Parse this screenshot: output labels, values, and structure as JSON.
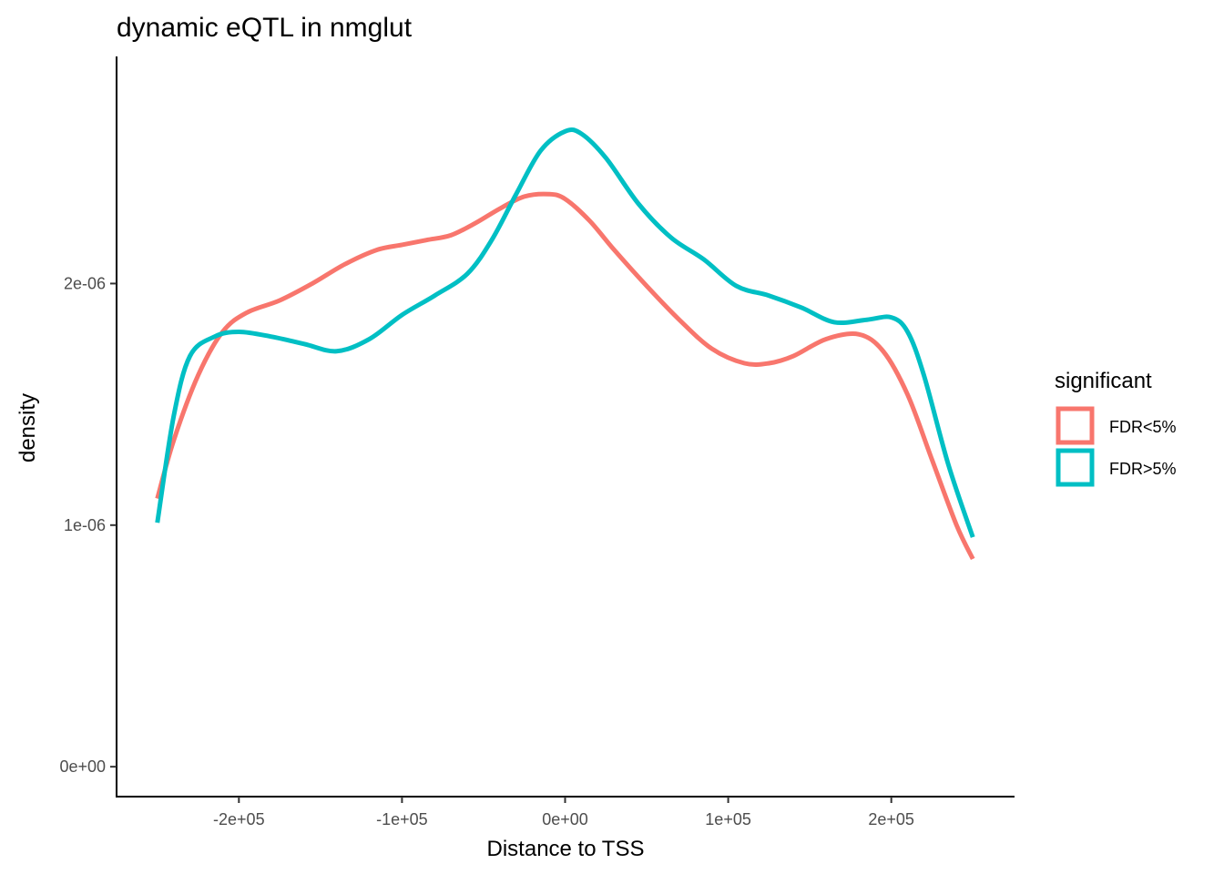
{
  "chart_data": {
    "type": "line",
    "title": "dynamic eQTL in nmglut",
    "xlabel": "Distance to TSS",
    "ylabel": "density",
    "xlim": [
      -275000,
      275000
    ],
    "ylim": [
      -1.2e-07,
      2.94e-06
    ],
    "x_ticks": [
      -200000,
      -100000,
      0,
      100000,
      200000
    ],
    "x_tick_labels": [
      "-2e+05",
      "-1e+05",
      "0e+00",
      "1e+05",
      "2e+05"
    ],
    "y_ticks": [
      0,
      1e-06,
      2e-06
    ],
    "y_tick_labels": [
      "0e+00",
      "1e-06",
      "2e-06"
    ],
    "grid": false,
    "legend": {
      "title": "significant",
      "position": "right"
    },
    "series": [
      {
        "name": "FDR<5%",
        "color": "#F8766D",
        "x": [
          -250000,
          -240000,
          -225000,
          -210000,
          -195000,
          -175000,
          -155000,
          -135000,
          -115000,
          -100000,
          -85000,
          -70000,
          -55000,
          -40000,
          -25000,
          -10000,
          0,
          15000,
          30000,
          50000,
          70000,
          90000,
          110000,
          125000,
          140000,
          160000,
          180000,
          195000,
          210000,
          225000,
          240000,
          250000
        ],
        "y": [
          1.11e-06,
          1.35e-06,
          1.62e-06,
          1.8e-06,
          1.88e-06,
          1.93e-06,
          2e-06,
          2.08e-06,
          2.14e-06,
          2.16e-06,
          2.18e-06,
          2.2e-06,
          2.25e-06,
          2.31e-06,
          2.36e-06,
          2.37e-06,
          2.35e-06,
          2.26e-06,
          2.14e-06,
          1.99e-06,
          1.85e-06,
          1.73e-06,
          1.67e-06,
          1.67e-06,
          1.7e-06,
          1.77e-06,
          1.79e-06,
          1.72e-06,
          1.54e-06,
          1.27e-06,
          1e-06,
          8.6e-07
        ]
      },
      {
        "name": "FDR>5%",
        "color": "#00BFC4",
        "x": [
          -250000,
          -240000,
          -230000,
          -215000,
          -200000,
          -180000,
          -160000,
          -140000,
          -120000,
          -100000,
          -80000,
          -60000,
          -45000,
          -30000,
          -15000,
          0,
          10000,
          25000,
          45000,
          65000,
          85000,
          105000,
          125000,
          145000,
          165000,
          185000,
          200000,
          210000,
          220000,
          235000,
          250000
        ],
        "y": [
          1.01e-06,
          1.45e-06,
          1.7e-06,
          1.78e-06,
          1.8e-06,
          1.78e-06,
          1.75e-06,
          1.72e-06,
          1.77e-06,
          1.87e-06,
          1.95e-06,
          2.04e-06,
          2.18e-06,
          2.37e-06,
          2.55e-06,
          2.63e-06,
          2.62e-06,
          2.52e-06,
          2.33e-06,
          2.19e-06,
          2.1e-06,
          1.99e-06,
          1.95e-06,
          1.9e-06,
          1.84e-06,
          1.85e-06,
          1.86e-06,
          1.8e-06,
          1.62e-06,
          1.25e-06,
          9.5e-07
        ]
      }
    ]
  }
}
